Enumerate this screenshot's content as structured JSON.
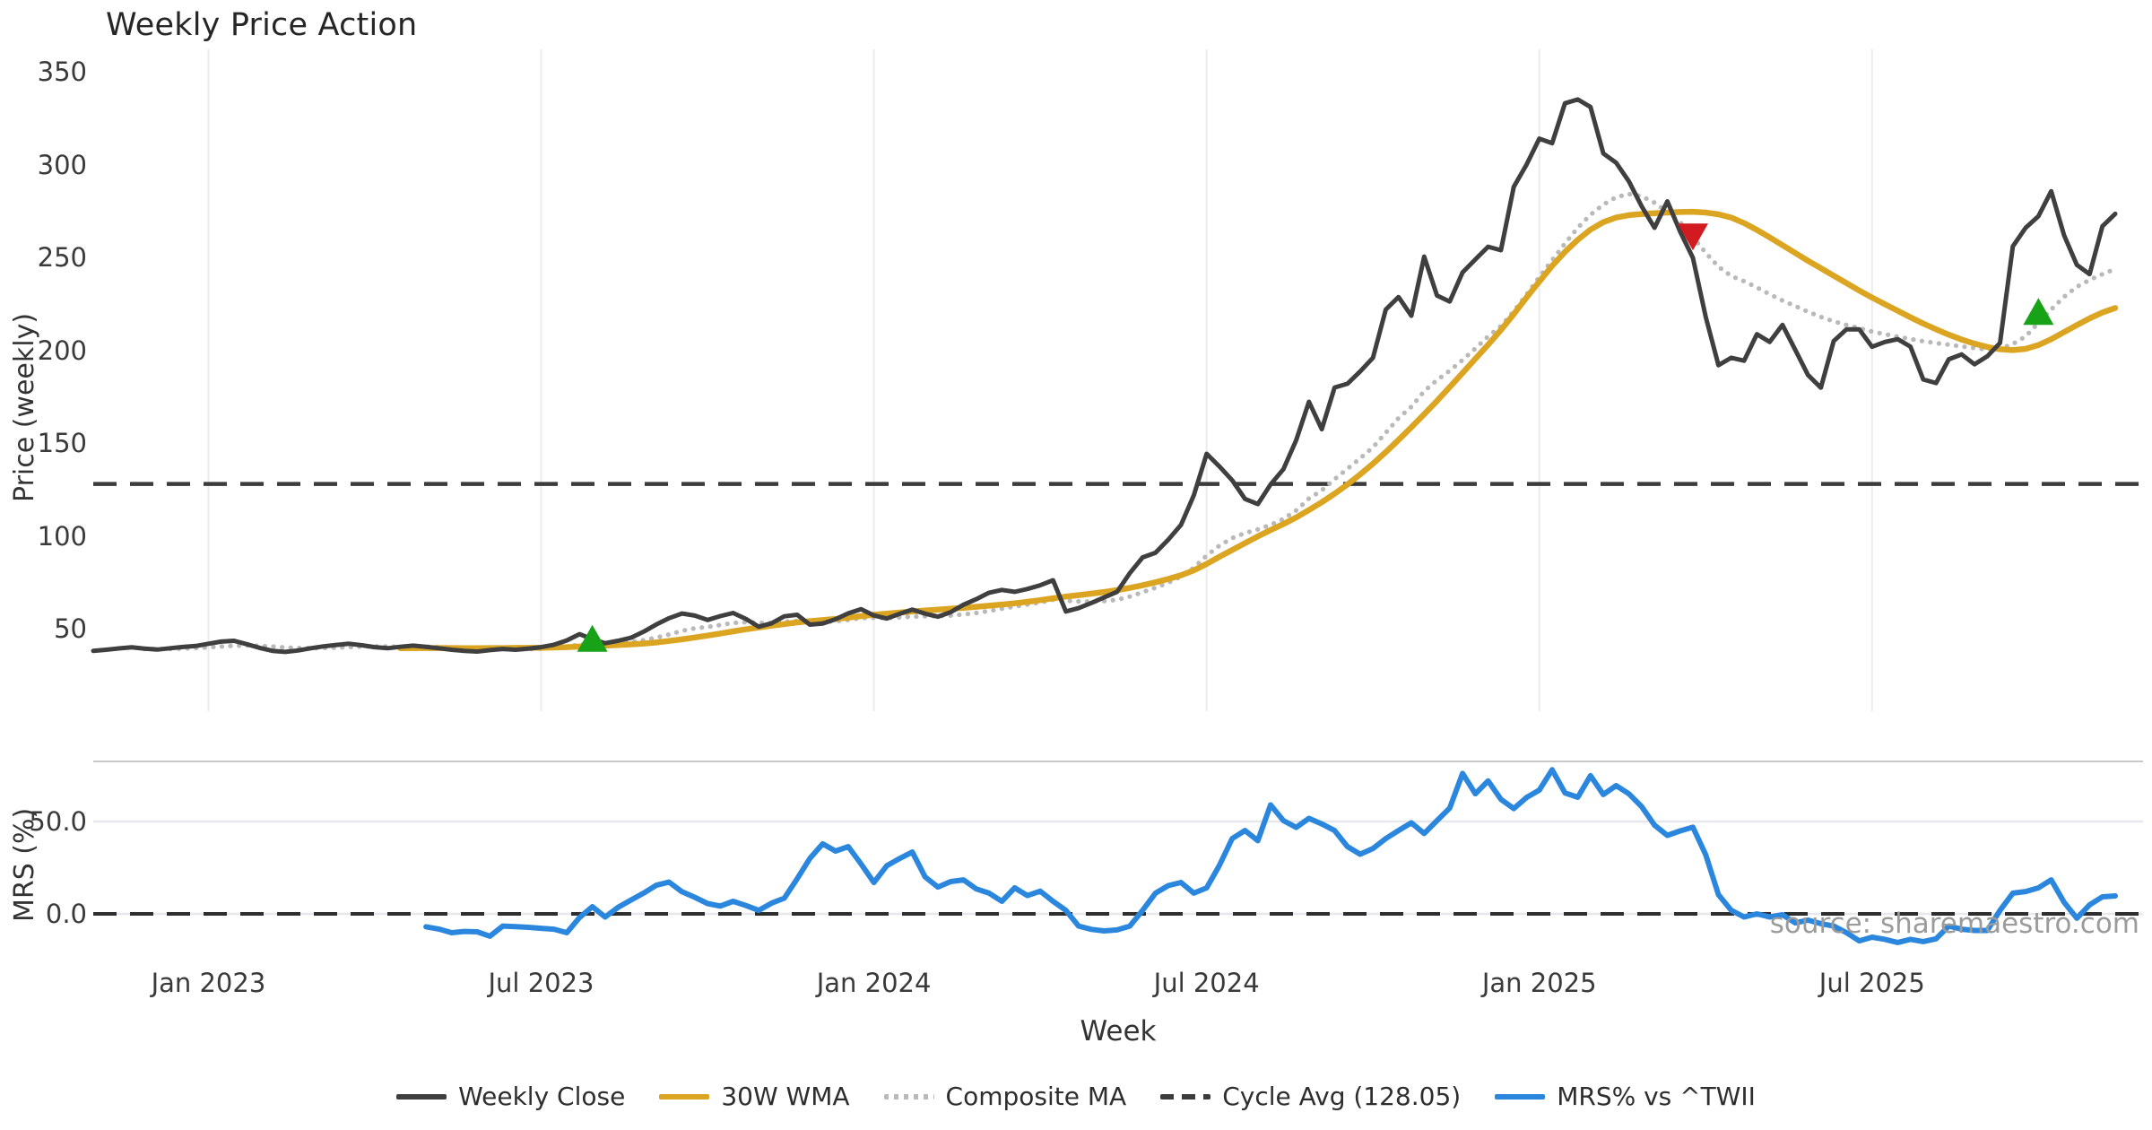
{
  "title": "Weekly Price Action",
  "watermark": "source: sharemaestro.com",
  "colors": {
    "close": "#3f3f3f",
    "wma": "#dba522",
    "composite": "#b9b9b9",
    "cycle": "#3b3b3b",
    "mrs": "#2b87dd",
    "buy_marker": "#17a217",
    "sell_marker": "#d11b20",
    "grid": "#ececec",
    "panel_border": "#c9c9c9",
    "light_hgrid": "#e7e7ee"
  },
  "chart_data": {
    "type": "line",
    "title": "Weekly Price Action",
    "xlabel": "Week",
    "x_is_weekly": true,
    "start_date": "2022-10-31",
    "n_weeks": 159,
    "x_ticks": [
      {
        "label": "Jan 2023",
        "week": 9
      },
      {
        "label": "Jul 2023",
        "week": 35
      },
      {
        "label": "Jan 2024",
        "week": 61
      },
      {
        "label": "Jul 2024",
        "week": 87
      },
      {
        "label": "Jan 2025",
        "week": 113
      },
      {
        "label": "Jul 2025",
        "week": 139
      }
    ],
    "panels": [
      {
        "name": "price",
        "ylabel": "Price (weekly)",
        "ylim": [
          7,
          362
        ],
        "yticks": [
          {
            "label": "50",
            "v": 50
          },
          {
            "label": "100",
            "v": 100
          },
          {
            "label": "150",
            "v": 150
          },
          {
            "label": "200",
            "v": 200
          },
          {
            "label": "250",
            "v": 250
          },
          {
            "label": "300",
            "v": 300
          },
          {
            "label": "350",
            "v": 350
          }
        ],
        "cycle_avg": 128.05,
        "series": [
          {
            "name": "Weekly Close",
            "style": "solid",
            "values": [
              38.2,
              38.8,
              39.5,
              40.1,
              39.4,
              38.9,
              39.6,
              40.3,
              40.8,
              42.0,
              43.2,
              43.6,
              41.8,
              39.8,
              38.2,
              37.6,
              38.4,
              39.6,
              40.6,
              41.4,
              42.0,
              41.2,
              40.2,
              39.6,
              40.4,
              41.0,
              40.4,
              39.6,
              38.8,
              38.2,
              37.8,
              38.6,
              39.2,
              38.8,
              39.4,
              40.2,
              41.5,
              43.8,
              47.2,
              44.5,
              42.3,
              43.6,
              45.2,
              48.5,
              52.4,
              55.8,
              58.3,
              57.2,
              54.8,
              56.9,
              58.6,
              55.4,
              51.2,
              53.0,
              56.8,
              57.6,
              52.3,
              52.9,
              55.2,
              58.4,
              60.6,
              57.3,
              55.6,
              58.1,
              60.4,
              58.2,
              56.6,
              59.0,
              63.0,
              66.0,
              69.5,
              71.0,
              70.0,
              71.5,
              73.5,
              76.2,
              59.4,
              61.2,
              64.0,
              67.0,
              70.0,
              80.0,
              88.5,
              91.0,
              98.0,
              106.0,
              122.0,
              144.3,
              137.5,
              130.0,
              120.0,
              117.2,
              127.8,
              136.0,
              151.7,
              172.3,
              157.5,
              180.0,
              182.0,
              188.6,
              196.0,
              222.0,
              228.7,
              218.6,
              250.5,
              229.5,
              226.3,
              242.0,
              249.0,
              255.8,
              253.9,
              288.0,
              300.0,
              314.0,
              311.5,
              333.0,
              335.1,
              331.0,
              306.0,
              301.0,
              291.0,
              277.5,
              266.0,
              280.2,
              264.0,
              249.8,
              218.0,
              192.0,
              196.0,
              194.4,
              208.7,
              204.5,
              213.7,
              200.2,
              186.7,
              179.9,
              205.0,
              211.3,
              211.3,
              201.9,
              204.5,
              206.0,
              202.0,
              184.3,
              182.4,
              195.2,
              197.8,
              192.5,
              196.8,
              204.0,
              256.0,
              266.0,
              272.2,
              285.7,
              262.0,
              246.0,
              241.0,
              266.8,
              273.5
            ]
          },
          {
            "name": "30W WMA",
            "style": "solid",
            "values": [
              null,
              null,
              null,
              null,
              null,
              null,
              null,
              null,
              null,
              null,
              null,
              null,
              null,
              null,
              null,
              null,
              null,
              null,
              null,
              null,
              null,
              null,
              null,
              null,
              39.6,
              39.6,
              39.7,
              39.7,
              39.7,
              39.6,
              39.6,
              39.7,
              39.7,
              39.8,
              39.8,
              39.9,
              40.0,
              40.2,
              40.5,
              40.8,
              41.0,
              41.3,
              41.7,
              42.1,
              42.7,
              43.5,
              44.4,
              45.4,
              46.4,
              47.5,
              48.7,
              49.8,
              50.8,
              51.7,
              52.6,
              53.5,
              54.2,
              54.8,
              55.4,
              56.1,
              56.9,
              57.6,
              58.2,
              58.8,
              59.4,
              59.9,
              60.4,
              60.9,
              61.4,
              61.9,
              62.5,
              63.1,
              63.8,
              64.6,
              65.5,
              66.5,
              67.4,
              68.2,
              69.0,
              69.9,
              70.9,
              72.1,
              73.5,
              75.1,
              76.9,
              78.9,
              81.5,
              85.0,
              88.8,
              92.5,
              96.2,
              99.8,
              103.2,
              106.5,
              110.0,
              114.0,
              118.2,
              122.8,
              127.8,
              133.2,
              139.0,
              145.2,
              151.8,
              158.6,
              165.6,
              172.8,
              180.2,
              187.8,
              195.5,
              203.0,
              211.0,
              219.5,
              228.5,
              237.0,
              245.5,
              253.0,
              259.5,
              265.0,
              269.0,
              271.5,
              272.8,
              273.4,
              273.8,
              274.2,
              274.5,
              274.6,
              274.2,
              273.2,
              271.5,
              268.5,
              264.8,
              260.8,
              256.6,
              252.4,
              248.2,
              244.2,
              240.2,
              236.2,
              232.2,
              228.4,
              224.8,
              221.3,
              217.8,
              214.4,
              211.3,
              208.4,
              205.8,
              203.6,
              201.8,
              200.6,
              200.1,
              200.8,
              202.8,
              206.0,
              209.8,
              213.6,
              217.2,
              220.4,
              222.8
            ]
          },
          {
            "name": "Composite MA",
            "style": "dotted",
            "values": [
              null,
              null,
              null,
              null,
              39.2,
              39.1,
              39.2,
              39.4,
              39.7,
              40.1,
              40.5,
              40.9,
              41.1,
              40.9,
              40.5,
              40.0,
              39.7,
              39.6,
              39.7,
              39.9,
              40.2,
              40.5,
              40.6,
              40.5,
              40.4,
              40.4,
              40.4,
              40.3,
              40.0,
              39.7,
              39.4,
              39.2,
              39.1,
              39.1,
              39.1,
              39.3,
              39.7,
              40.4,
              41.6,
              42.2,
              42.3,
              42.5,
              43.0,
              43.9,
              45.3,
              47.0,
              48.9,
              50.3,
              51.1,
              52.1,
              53.2,
              53.6,
              53.2,
              53.2,
              53.8,
              54.4,
              54.1,
              53.9,
              54.1,
              54.8,
              55.8,
              56.0,
              55.9,
              56.2,
              56.6,
              56.8,
              56.9,
              57.2,
              57.8,
              58.6,
              59.7,
              60.9,
              62.0,
              63.1,
              64.3,
              65.7,
              65.2,
              64.8,
              64.7,
              65.0,
              65.7,
              67.4,
              69.8,
              72.2,
              74.9,
              78.2,
              82.9,
              89.5,
              94.8,
              98.9,
              101.6,
              103.6,
              106.0,
              109.2,
              113.8,
              120.2,
              124.6,
              130.6,
              136.2,
              141.9,
              147.8,
              155.6,
              163.5,
              169.6,
              178.0,
              184.0,
              189.0,
              194.8,
              201.0,
              207.5,
              213.0,
              221.0,
              230.0,
              239.5,
              248.5,
              257.5,
              266.0,
              273.0,
              278.5,
              282.5,
              284.2,
              283.0,
              279.5,
              274.5,
              269.0,
              261.0,
              252.5,
              245.0,
              240.0,
              237.2,
              233.8,
              230.2,
              226.8,
              223.8,
              220.8,
              218.0,
              215.6,
              213.7,
              211.9,
              210.1,
              208.7,
              207.3,
              206.1,
              204.9,
              203.9,
              203.0,
              202.1,
              201.2,
              200.4,
              200.9,
              203.4,
              207.5,
              214.8,
              222.0,
              228.8,
              234.2,
              237.9,
              241.0,
              243.8
            ]
          }
        ],
        "markers": [
          {
            "week": 39,
            "value": 44.0,
            "dir": "up",
            "kind": "buy-signal"
          },
          {
            "week": 125,
            "value": 262.0,
            "dir": "down",
            "kind": "sell-signal"
          },
          {
            "week": 152,
            "value": 220.0,
            "dir": "up",
            "kind": "buy-signal"
          }
        ]
      },
      {
        "name": "mrs",
        "ylabel": "MRS (%)",
        "ylim": [
          -20,
          82
        ],
        "yticks": [
          {
            "label": "0.0",
            "v": 0
          },
          {
            "label": "50.0",
            "v": 50
          }
        ],
        "zero_line": 0,
        "series": [
          {
            "name": "MRS% vs ^TWII",
            "style": "solid",
            "values": [
              null,
              null,
              null,
              null,
              null,
              null,
              null,
              null,
              null,
              null,
              null,
              null,
              null,
              null,
              null,
              null,
              null,
              null,
              null,
              null,
              null,
              null,
              null,
              null,
              null,
              null,
              -7.0,
              -8.2,
              -10.2,
              -9.5,
              -9.7,
              -12.1,
              -6.6,
              -6.9,
              -7.3,
              -7.8,
              -8.3,
              -10.2,
              -2.0,
              3.9,
              -1.7,
              3.5,
              7.4,
              11.2,
              15.5,
              17.2,
              12.0,
              9.0,
              5.6,
              4.2,
              6.8,
              4.5,
              1.9,
              5.8,
              8.5,
              19.0,
              30.0,
              37.9,
              34.0,
              36.4,
              27.0,
              17.0,
              26.0,
              29.9,
              33.5,
              20.0,
              14.5,
              17.5,
              18.4,
              13.5,
              11.2,
              6.8,
              14.1,
              9.9,
              12.3,
              6.8,
              1.9,
              -6.6,
              -8.4,
              -9.2,
              -8.7,
              -6.6,
              1.9,
              11.2,
              15.3,
              17.0,
              11.2,
              14.1,
              26.2,
              40.8,
              45.1,
              39.6,
              59.0,
              50.5,
              46.8,
              51.7,
              48.7,
              45.1,
              36.4,
              32.3,
              35.4,
              40.8,
              45.1,
              49.3,
              43.5,
              50.5,
              57.3,
              76.0,
              65.0,
              72.0,
              62.0,
              57.0,
              63.0,
              67.0,
              78.0,
              65.5,
              63.1,
              74.8,
              64.6,
              69.4,
              65.0,
              58.0,
              48.0,
              42.5,
              44.9,
              46.9,
              32.0,
              10.4,
              1.9,
              -1.7,
              0.0,
              -1.7,
              -0.5,
              -4.9,
              -3.4,
              -5.3,
              -6.6,
              -10.2,
              -14.6,
              -12.6,
              -13.8,
              -15.5,
              -13.8,
              -15.0,
              -13.5,
              -6.6,
              -8.3,
              -9.0,
              -9.0,
              1.9,
              11.2,
              12.1,
              14.1,
              18.4,
              6.3,
              -2.4,
              4.9,
              9.2,
              9.7
            ]
          }
        ]
      }
    ],
    "legend": [
      {
        "label": "Weekly Close",
        "color": "#3f3f3f",
        "style": "solid"
      },
      {
        "label": "30W WMA",
        "color": "#dba522",
        "style": "solid"
      },
      {
        "label": "Composite MA",
        "color": "#b9b9b9",
        "style": "dotted"
      },
      {
        "label": "Cycle Avg (128.05)",
        "color": "#3b3b3b",
        "style": "dashed"
      },
      {
        "label": "MRS% vs ^TWII",
        "color": "#2b87dd",
        "style": "solid"
      }
    ],
    "grid": "vertical-on-price-panel, horizontal-on-mrs-panel",
    "legend_position": "bottom-center"
  }
}
